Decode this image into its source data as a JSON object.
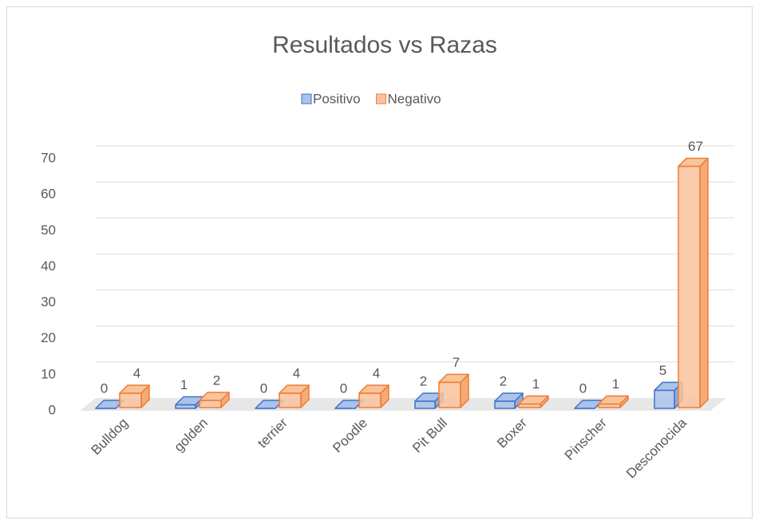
{
  "chart_data": {
    "type": "bar3d",
    "title": "Resultados vs Razas",
    "categories": [
      "Bulldog",
      "golden",
      "terrier",
      "Poodle",
      "Pit Bull",
      "Boxer",
      "Pinscher",
      "Desconocida"
    ],
    "series": [
      {
        "name": "Positivo",
        "color": "#4472c4",
        "values": [
          0,
          1,
          0,
          0,
          2,
          2,
          0,
          5
        ]
      },
      {
        "name": "Negativo",
        "color": "#ed7d31",
        "values": [
          4,
          2,
          4,
          4,
          7,
          1,
          1,
          67
        ]
      }
    ],
    "ylim": [
      0,
      70
    ],
    "yticks": [
      0,
      10,
      20,
      30,
      40,
      50,
      60,
      70
    ],
    "grid": true,
    "legend": "top"
  }
}
